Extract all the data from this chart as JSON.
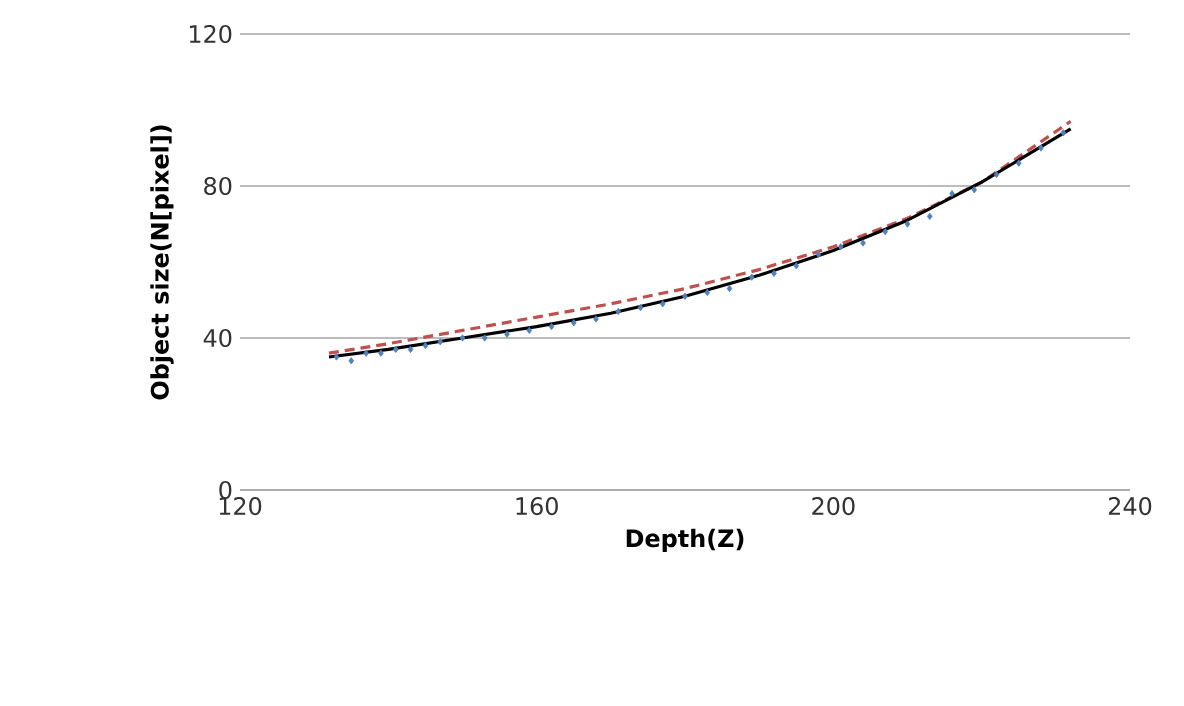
{
  "chart_data": {
    "type": "line",
    "xlabel": "Depth(Z)",
    "ylabel": "Object size(N[pixel])",
    "xlim": [
      120,
      240
    ],
    "xticks": [
      120,
      160,
      200,
      240
    ],
    "ylim": [
      0,
      120
    ],
    "yticks": [
      0,
      40,
      80,
      120
    ],
    "grid": "y",
    "series": [
      {
        "type": "scatter",
        "marker": "diamond",
        "color": "#4f81bd",
        "x": [
          133,
          135,
          137,
          139,
          141,
          143,
          145,
          147,
          150,
          153,
          156,
          159,
          162,
          165,
          168,
          171,
          174,
          177,
          180,
          183,
          186,
          189,
          192,
          195,
          198,
          201,
          204,
          207,
          210,
          213,
          216,
          219,
          222,
          225,
          228,
          231
        ],
        "values": [
          35,
          34,
          36,
          36,
          37,
          37,
          38,
          39,
          40,
          40,
          41,
          42,
          43,
          44,
          45,
          47,
          48,
          49,
          51,
          52,
          53,
          56,
          57,
          59,
          62,
          64,
          65,
          68,
          70,
          72,
          78,
          79,
          83,
          86,
          90,
          94
        ]
      },
      {
        "type": "line",
        "line_style": "dashed",
        "color": "#c0504d",
        "x": [
          132,
          140,
          150,
          160,
          170,
          180,
          190,
          200,
          210,
          220,
          232
        ],
        "values": [
          36,
          38.5,
          42,
          45.5,
          49,
          53,
          58,
          64,
          71.5,
          81,
          97
        ]
      },
      {
        "line_style": "solid",
        "color": "#000000",
        "x": [
          132,
          140,
          150,
          160,
          170,
          180,
          190,
          200,
          210,
          220,
          232
        ],
        "values": [
          35,
          37,
          40,
          43,
          46.5,
          51,
          56.5,
          63,
          71,
          81,
          95
        ]
      }
    ]
  }
}
